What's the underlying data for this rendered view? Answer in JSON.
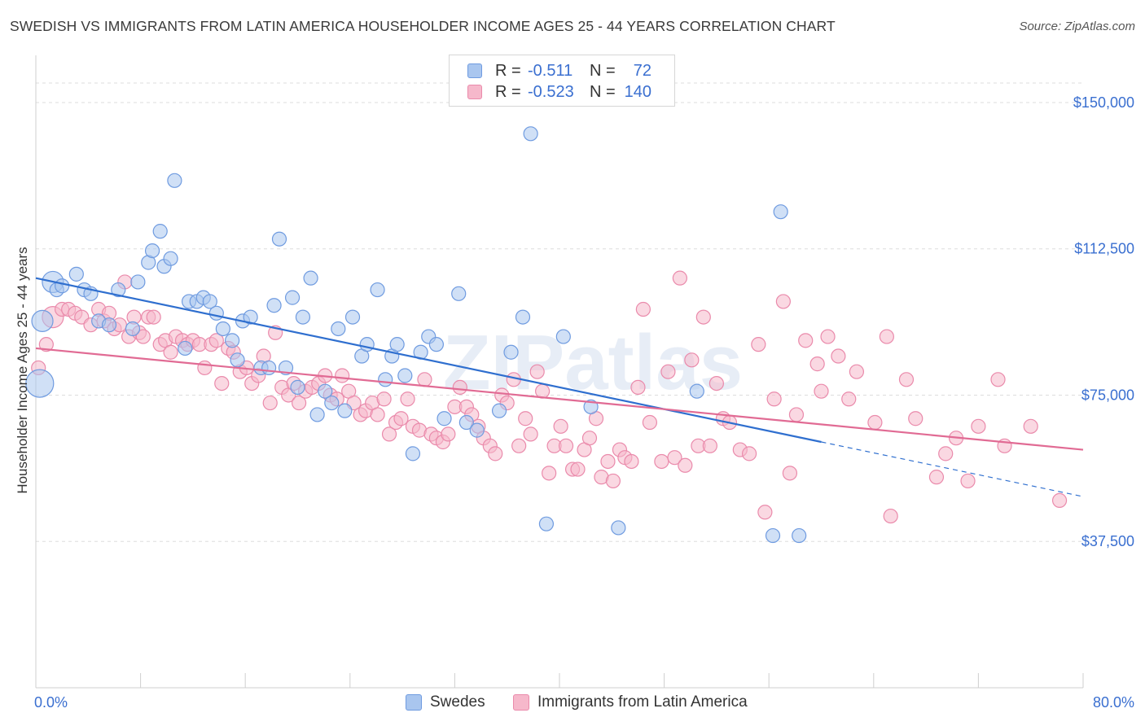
{
  "title": "SWEDISH VS IMMIGRANTS FROM LATIN AMERICA HOUSEHOLDER INCOME AGES 25 - 44 YEARS CORRELATION CHART",
  "source": "Source: ZipAtlas.com",
  "watermark": "ZIPatlas",
  "colors": {
    "blue_fill": "#a9c6ef",
    "blue_stroke": "#6f9be0",
    "blue_line": "#2f6fcf",
    "pink_fill": "#f6b8cb",
    "pink_stroke": "#ea8aab",
    "pink_line": "#e16b94",
    "axis_text": "#3a6fd0",
    "grid": "#dddddd"
  },
  "legend": {
    "rows": [
      {
        "r_label": "R =",
        "r_value": "-0.511",
        "n_label": "N =",
        "n_value": "72"
      },
      {
        "r_label": "R =",
        "r_value": "-0.523",
        "n_label": "N =",
        "n_value": "140"
      }
    ]
  },
  "bottom_legend": {
    "swedes": "Swedes",
    "latin": "Immigrants from Latin America"
  },
  "chart_data": {
    "type": "scatter",
    "title": "SWEDISH VS IMMIGRANTS FROM LATIN AMERICA HOUSEHOLDER INCOME AGES 25 - 44 YEARS CORRELATION CHART",
    "xlabel": "",
    "ylabel": "Householder Income Ages 25 - 44 years",
    "xlim": [
      0,
      80
    ],
    "ylim": [
      0,
      160000
    ],
    "x_tick_labels": [
      "0.0%",
      "80.0%"
    ],
    "y_ticks": [
      37500,
      75000,
      112500,
      150000
    ],
    "y_tick_labels": [
      "$37,500",
      "$75,000",
      "$112,500",
      "$150,000"
    ],
    "grid": true,
    "series": [
      {
        "name": "Swedes",
        "r": -0.511,
        "n": 72,
        "trend": {
          "x0": 0,
          "y0": 105000,
          "x1": 60,
          "y1": 63000,
          "dash_to_x": 80,
          "dash_to_y": 49000
        },
        "points": [
          [
            0.3,
            78000,
            3
          ],
          [
            0.5,
            94000,
            2
          ],
          [
            1.3,
            104000,
            2
          ],
          [
            1.6,
            102000,
            1
          ],
          [
            2.0,
            103000,
            1
          ],
          [
            3.1,
            106000,
            1
          ],
          [
            3.7,
            102000,
            1
          ],
          [
            4.2,
            101000,
            1
          ],
          [
            4.8,
            94000,
            1
          ],
          [
            5.6,
            93000,
            1
          ],
          [
            6.3,
            102000,
            1
          ],
          [
            7.4,
            92000,
            1
          ],
          [
            7.8,
            104000,
            1
          ],
          [
            8.6,
            109000,
            1
          ],
          [
            8.9,
            112000,
            1
          ],
          [
            9.5,
            117000,
            1
          ],
          [
            9.8,
            108000,
            1
          ],
          [
            10.3,
            110000,
            1
          ],
          [
            10.6,
            130000,
            1
          ],
          [
            11.4,
            87000,
            1
          ],
          [
            11.7,
            99000,
            1
          ],
          [
            12.3,
            99000,
            1
          ],
          [
            12.8,
            100000,
            1
          ],
          [
            13.3,
            99000,
            1
          ],
          [
            13.8,
            96000,
            1
          ],
          [
            14.3,
            92000,
            1
          ],
          [
            15.0,
            89000,
            1
          ],
          [
            15.4,
            84000,
            1
          ],
          [
            15.8,
            94000,
            1
          ],
          [
            16.4,
            95000,
            1
          ],
          [
            17.2,
            82000,
            1
          ],
          [
            17.8,
            82000,
            1
          ],
          [
            18.2,
            98000,
            1
          ],
          [
            18.6,
            115000,
            1
          ],
          [
            19.1,
            82000,
            1
          ],
          [
            19.6,
            100000,
            1
          ],
          [
            20.0,
            77000,
            1
          ],
          [
            20.4,
            95000,
            1
          ],
          [
            21.0,
            105000,
            1
          ],
          [
            21.5,
            70000,
            1
          ],
          [
            22.1,
            76000,
            1
          ],
          [
            22.6,
            73000,
            1
          ],
          [
            23.1,
            92000,
            1
          ],
          [
            23.6,
            71000,
            1
          ],
          [
            24.2,
            95000,
            1
          ],
          [
            24.9,
            85000,
            1
          ],
          [
            25.3,
            88000,
            1
          ],
          [
            26.1,
            102000,
            1
          ],
          [
            26.7,
            79000,
            1
          ],
          [
            27.2,
            85000,
            1
          ],
          [
            27.6,
            88000,
            1
          ],
          [
            28.2,
            80000,
            1
          ],
          [
            28.8,
            60000,
            1
          ],
          [
            29.4,
            86000,
            1
          ],
          [
            30.0,
            90000,
            1
          ],
          [
            30.6,
            88000,
            1
          ],
          [
            31.2,
            69000,
            1
          ],
          [
            32.3,
            101000,
            1
          ],
          [
            32.9,
            68000,
            1
          ],
          [
            33.7,
            66000,
            1
          ],
          [
            35.4,
            71000,
            1
          ],
          [
            36.3,
            86000,
            1
          ],
          [
            37.2,
            95000,
            1
          ],
          [
            37.8,
            142000,
            1
          ],
          [
            39.0,
            42000,
            1
          ],
          [
            40.3,
            90000,
            1
          ],
          [
            42.4,
            72000,
            1
          ],
          [
            44.5,
            41000,
            1
          ],
          [
            50.5,
            76000,
            1
          ],
          [
            56.3,
            39000,
            1
          ],
          [
            56.9,
            122000,
            1
          ],
          [
            58.3,
            39000,
            1
          ]
        ]
      },
      {
        "name": "Immigrants from Latin America",
        "r": -0.523,
        "n": 140,
        "trend": {
          "x0": 0,
          "y0": 87000,
          "x1": 80,
          "y1": 61000
        },
        "points": [
          [
            0.2,
            82000,
            1
          ],
          [
            0.8,
            88000,
            1
          ],
          [
            1.3,
            95000,
            2
          ],
          [
            2.0,
            97000,
            1
          ],
          [
            2.5,
            97000,
            1
          ],
          [
            3.0,
            96000,
            1
          ],
          [
            3.5,
            95000,
            1
          ],
          [
            4.2,
            93000,
            1
          ],
          [
            4.8,
            97000,
            1
          ],
          [
            5.2,
            94000,
            1
          ],
          [
            5.6,
            96000,
            1
          ],
          [
            6.0,
            92000,
            1
          ],
          [
            6.4,
            93000,
            1
          ],
          [
            6.8,
            104000,
            1
          ],
          [
            7.1,
            90000,
            1
          ],
          [
            7.5,
            95000,
            1
          ],
          [
            7.9,
            91000,
            1
          ],
          [
            8.2,
            90000,
            1
          ],
          [
            8.6,
            95000,
            1
          ],
          [
            9.0,
            95000,
            1
          ],
          [
            9.5,
            88000,
            1
          ],
          [
            9.9,
            89000,
            1
          ],
          [
            10.3,
            86000,
            1
          ],
          [
            10.7,
            90000,
            1
          ],
          [
            11.2,
            89000,
            1
          ],
          [
            11.6,
            88000,
            1
          ],
          [
            12.0,
            89000,
            1
          ],
          [
            12.5,
            88000,
            1
          ],
          [
            12.9,
            82000,
            1
          ],
          [
            13.4,
            88000,
            1
          ],
          [
            13.8,
            89000,
            1
          ],
          [
            14.2,
            78000,
            1
          ],
          [
            14.7,
            87000,
            1
          ],
          [
            15.1,
            86000,
            1
          ],
          [
            15.6,
            81000,
            1
          ],
          [
            16.1,
            82000,
            1
          ],
          [
            16.5,
            78000,
            1
          ],
          [
            17.0,
            80000,
            1
          ],
          [
            17.4,
            85000,
            1
          ],
          [
            17.9,
            73000,
            1
          ],
          [
            18.3,
            91000,
            1
          ],
          [
            18.8,
            77000,
            1
          ],
          [
            19.3,
            75000,
            1
          ],
          [
            19.7,
            78000,
            1
          ],
          [
            20.1,
            73000,
            1
          ],
          [
            20.6,
            76000,
            1
          ],
          [
            21.1,
            77000,
            1
          ],
          [
            21.6,
            78000,
            1
          ],
          [
            22.1,
            80000,
            1
          ],
          [
            22.5,
            75000,
            1
          ],
          [
            23.0,
            74000,
            1
          ],
          [
            23.4,
            80000,
            1
          ],
          [
            23.9,
            76000,
            1
          ],
          [
            24.3,
            73000,
            1
          ],
          [
            24.8,
            70000,
            1
          ],
          [
            25.2,
            71000,
            1
          ],
          [
            25.7,
            73000,
            1
          ],
          [
            26.1,
            70000,
            1
          ],
          [
            26.6,
            74000,
            1
          ],
          [
            27.0,
            65000,
            1
          ],
          [
            27.5,
            68000,
            1
          ],
          [
            27.9,
            69000,
            1
          ],
          [
            28.4,
            74000,
            1
          ],
          [
            28.8,
            67000,
            1
          ],
          [
            29.3,
            66000,
            1
          ],
          [
            29.7,
            79000,
            1
          ],
          [
            30.2,
            65000,
            1
          ],
          [
            30.6,
            64000,
            1
          ],
          [
            31.1,
            63000,
            1
          ],
          [
            31.5,
            65000,
            1
          ],
          [
            32.0,
            72000,
            1
          ],
          [
            32.4,
            77000,
            1
          ],
          [
            32.9,
            72000,
            1
          ],
          [
            33.3,
            70000,
            1
          ],
          [
            33.8,
            67000,
            1
          ],
          [
            34.2,
            64000,
            1
          ],
          [
            34.7,
            62000,
            1
          ],
          [
            35.1,
            60000,
            1
          ],
          [
            35.6,
            75000,
            1
          ],
          [
            36.0,
            73000,
            1
          ],
          [
            36.5,
            79000,
            1
          ],
          [
            36.9,
            62000,
            1
          ],
          [
            37.4,
            69000,
            1
          ],
          [
            37.8,
            65000,
            1
          ],
          [
            38.3,
            81000,
            1
          ],
          [
            38.7,
            76000,
            1
          ],
          [
            39.2,
            55000,
            1
          ],
          [
            39.6,
            62000,
            1
          ],
          [
            40.1,
            67000,
            1
          ],
          [
            40.5,
            62000,
            1
          ],
          [
            41.0,
            56000,
            1
          ],
          [
            41.4,
            56000,
            1
          ],
          [
            41.9,
            61000,
            1
          ],
          [
            42.3,
            64000,
            1
          ],
          [
            42.8,
            69000,
            1
          ],
          [
            43.2,
            54000,
            1
          ],
          [
            43.7,
            58000,
            1
          ],
          [
            44.1,
            53000,
            1
          ],
          [
            44.6,
            61000,
            1
          ],
          [
            45.0,
            59000,
            1
          ],
          [
            45.5,
            58000,
            1
          ],
          [
            46.0,
            77000,
            1
          ],
          [
            46.4,
            97000,
            1
          ],
          [
            46.9,
            68000,
            1
          ],
          [
            47.8,
            58000,
            1
          ],
          [
            48.3,
            81000,
            1
          ],
          [
            48.8,
            59000,
            1
          ],
          [
            49.2,
            105000,
            1
          ],
          [
            49.6,
            57000,
            1
          ],
          [
            50.1,
            84000,
            1
          ],
          [
            50.6,
            62000,
            1
          ],
          [
            51.0,
            95000,
            1
          ],
          [
            51.5,
            62000,
            1
          ],
          [
            52.0,
            78000,
            1
          ],
          [
            52.5,
            69000,
            1
          ],
          [
            53.0,
            68000,
            1
          ],
          [
            53.8,
            61000,
            1
          ],
          [
            54.5,
            60000,
            1
          ],
          [
            55.2,
            88000,
            1
          ],
          [
            55.7,
            45000,
            1
          ],
          [
            56.4,
            74000,
            1
          ],
          [
            57.1,
            99000,
            1
          ],
          [
            57.6,
            55000,
            1
          ],
          [
            58.1,
            70000,
            1
          ],
          [
            58.8,
            89000,
            1
          ],
          [
            59.7,
            83000,
            1
          ],
          [
            60.5,
            90000,
            1
          ],
          [
            61.3,
            85000,
            1
          ],
          [
            62.1,
            74000,
            1
          ],
          [
            62.7,
            81000,
            1
          ],
          [
            64.1,
            68000,
            1
          ],
          [
            65.3,
            44000,
            1
          ],
          [
            67.2,
            69000,
            1
          ],
          [
            68.8,
            54000,
            1
          ],
          [
            70.3,
            64000,
            1
          ],
          [
            71.2,
            53000,
            1
          ],
          [
            73.5,
            79000,
            1
          ],
          [
            78.2,
            48000,
            1
          ],
          [
            65.0,
            90000,
            1
          ],
          [
            66.5,
            79000,
            1
          ],
          [
            60.0,
            76000,
            1
          ],
          [
            69.5,
            60000,
            1
          ],
          [
            72.0,
            67000,
            1
          ],
          [
            74.0,
            62000,
            1
          ],
          [
            76.0,
            67000,
            1
          ]
        ]
      }
    ]
  }
}
